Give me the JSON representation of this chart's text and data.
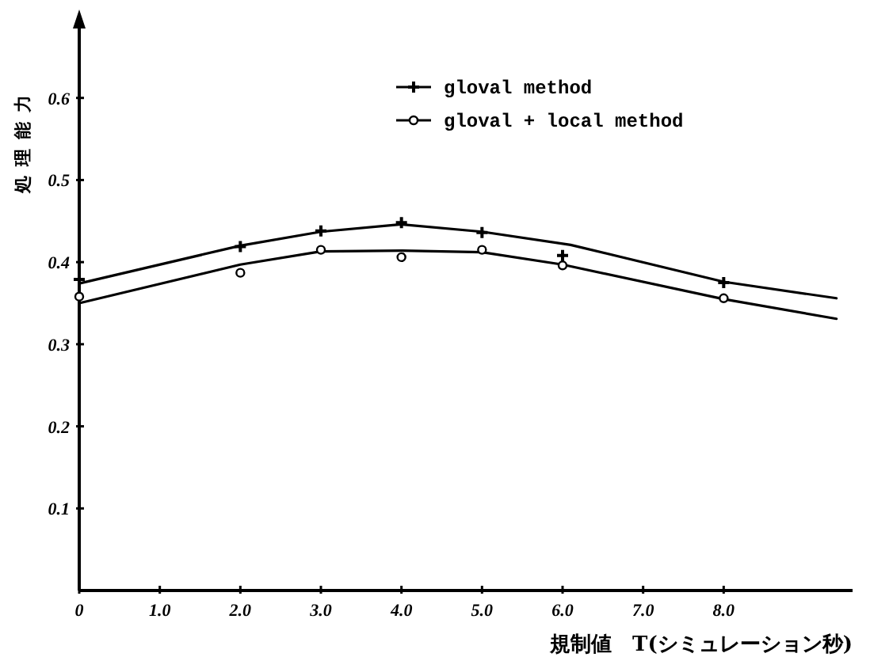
{
  "chart_data": {
    "type": "line",
    "xlabel": "規制値　T(シミュレーション秒)",
    "ylabel": "処理能力",
    "legend": "top",
    "xlim": [
      0,
      9.6
    ],
    "ylim": [
      0,
      0.7
    ],
    "xticks": [
      0,
      {
        "value": 1,
        "label": "1.0"
      },
      {
        "value": 2,
        "label": "2.0"
      },
      {
        "value": 3,
        "label": "3.0"
      },
      {
        "value": 4,
        "label": "4.0"
      },
      {
        "value": 5,
        "label": "5.0"
      },
      {
        "value": 6,
        "label": "6.0"
      },
      {
        "value": 7,
        "label": "7.0"
      },
      {
        "value": 8,
        "label": "8.0"
      }
    ],
    "yticks": [
      0.1,
      0.2,
      0.3,
      0.4,
      0.5,
      0.6
    ],
    "series": [
      {
        "name": "gloval method",
        "type": "scatter",
        "marker": "cross",
        "color": "#000000",
        "x": [
          0,
          2,
          3,
          4,
          5,
          6,
          8
        ],
        "values": [
          0.379,
          0.419,
          0.438,
          0.448,
          0.436,
          0.408,
          0.375
        ]
      },
      {
        "name": "gloval + local method",
        "type": "scatter",
        "marker": "circle",
        "color": "#000000",
        "x": [
          0,
          2,
          3,
          4,
          5,
          6,
          8
        ],
        "values": [
          0.358,
          0.387,
          0.415,
          0.406,
          0.415,
          0.396,
          0.356
        ]
      },
      {
        "type": "line",
        "color": "#000000",
        "x": [
          0,
          2,
          3,
          4,
          5,
          6.1,
          8,
          9.4
        ],
        "values": [
          0.374,
          0.42,
          0.437,
          0.446,
          0.437,
          0.421,
          0.376,
          0.356
        ]
      },
      {
        "type": "line",
        "color": "#000000",
        "x": [
          0,
          2,
          3,
          4,
          5,
          6,
          8,
          9.4
        ],
        "values": [
          0.35,
          0.397,
          0.413,
          0.414,
          0.412,
          0.397,
          0.355,
          0.331
        ]
      }
    ]
  }
}
